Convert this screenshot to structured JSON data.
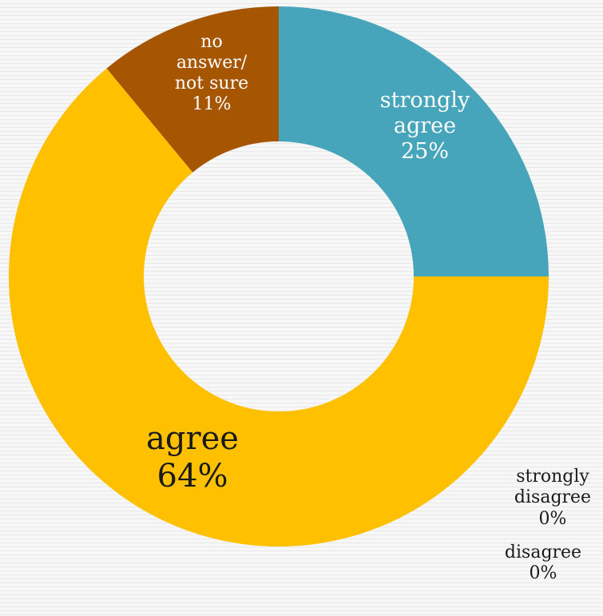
{
  "chart_data": {
    "type": "donut",
    "title": "",
    "slices": [
      {
        "category": "strongly agree",
        "percent": 25,
        "label_lines": [
          "strongly",
          "agree"
        ],
        "value_label": "25%",
        "color": "#46A5BA",
        "label_color": "#ffffff"
      },
      {
        "category": "agree",
        "percent": 64,
        "label_lines": [
          "agree"
        ],
        "value_label": "64%",
        "color": "#FFC000",
        "label_color": "#1a1a1a"
      },
      {
        "category": "no answer/ not sure",
        "percent": 11,
        "label_lines": [
          "no",
          "answer/",
          "not sure"
        ],
        "value_label": "11%",
        "color": "#A65500",
        "label_color": "#ffffff"
      },
      {
        "category": "strongly disagree",
        "percent": 0,
        "label_lines": [
          "strongly",
          "disagree"
        ],
        "value_label": "0%",
        "color": "#404040",
        "label_color": "#1a1a1a"
      },
      {
        "category": "disagree",
        "percent": 0,
        "label_lines": [
          "disagree"
        ],
        "value_label": "0%",
        "color": "#7f7f7f",
        "label_color": "#1a1a1a"
      }
    ]
  }
}
